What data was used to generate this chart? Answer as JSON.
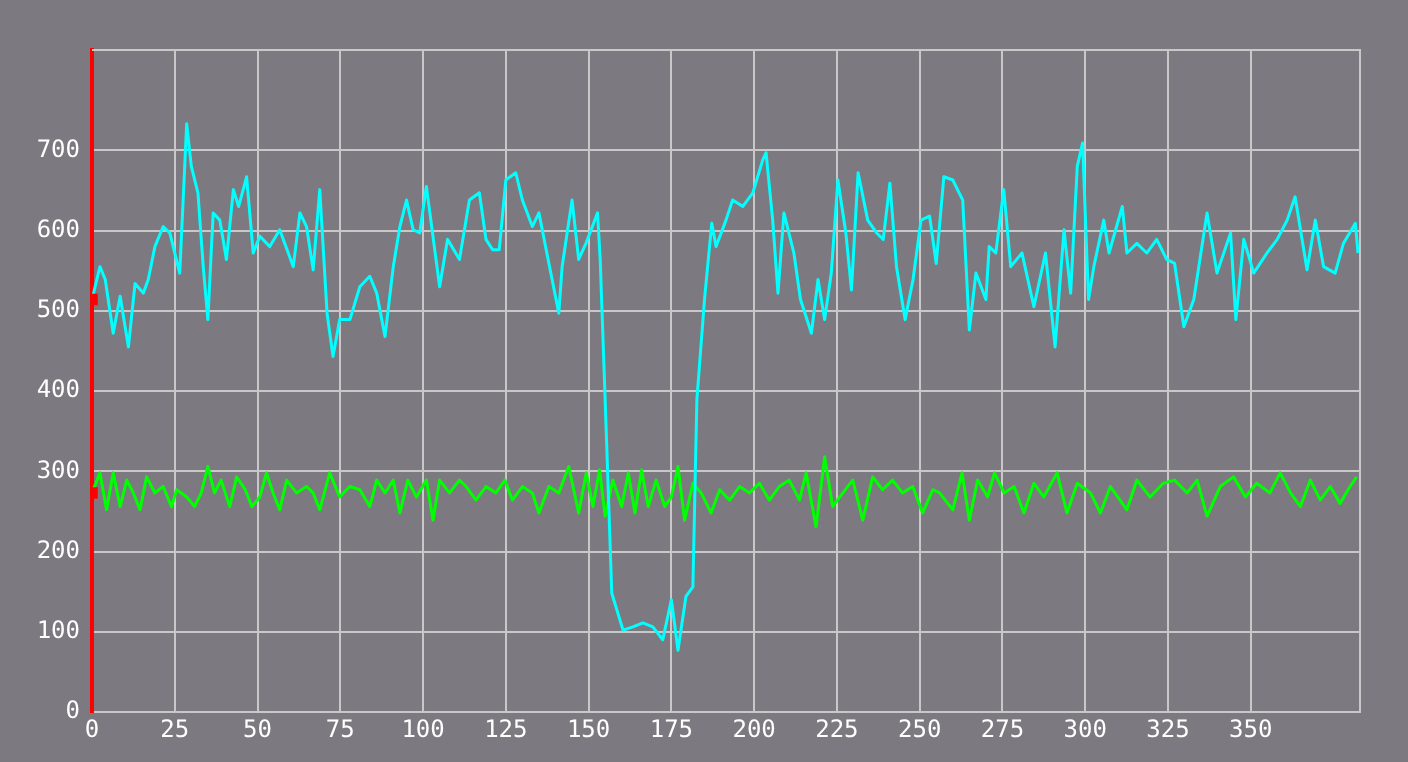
{
  "chart_data": {
    "type": "line",
    "series": [
      {
        "color": "#00ffff",
        "x": [
          0,
          2.4,
          4,
          6.4,
          8.5,
          11,
          13,
          15.5,
          17,
          19,
          21.5,
          23.5,
          26.5,
          28.6,
          30,
          32,
          33.6,
          35,
          36.6,
          38.6,
          40.6,
          42.7,
          44.3,
          46.7,
          48.7,
          50.7,
          53.7,
          56.7,
          60.8,
          62.8,
          64.8,
          66.8,
          68.8,
          71,
          72.8,
          74.8,
          77.9,
          80.9,
          83.9,
          86,
          88.5,
          91,
          93,
          95,
          97,
          99,
          101,
          105,
          107.4,
          111,
          114,
          117,
          119,
          121,
          123,
          125,
          128,
          130,
          133,
          135,
          137,
          141,
          142,
          145,
          147,
          149.3,
          152.7,
          153.5,
          155,
          157,
          160.4,
          163.4,
          166.4,
          169.4,
          172.4,
          175,
          177,
          179.4,
          181.5,
          182.7,
          185,
          187.2,
          188.5,
          191.5,
          193.5,
          196.6,
          199.6,
          202.6,
          203.6,
          205.6,
          207.2,
          209,
          212,
          214,
          217.3,
          219.3,
          221.3,
          223.3,
          225.3,
          227.7,
          229.4,
          231.4,
          234.3,
          237,
          239,
          241,
          243,
          245.6,
          248,
          250.4,
          253,
          255,
          257.3,
          260,
          263,
          265,
          267,
          270,
          271,
          273,
          275.4,
          277.5,
          280.9,
          284.5,
          288,
          290.9,
          293.6,
          295.6,
          297.6,
          299.2,
          301,
          302.6,
          305.6,
          307.2,
          311.2,
          312.6,
          315.6,
          318.6,
          321.6,
          324.6,
          327,
          329.8,
          332.8,
          336.8,
          339.8,
          343.9,
          345.5,
          347.9,
          350.9,
          354.9,
          358,
          361,
          363.4,
          367,
          369.5,
          372,
          375.5,
          378,
          381.6,
          382.4
        ],
        "values": [
          514,
          555,
          539,
          472,
          518,
          455,
          534,
          522,
          539,
          580,
          605,
          597,
          547,
          733,
          680,
          647,
          555,
          489,
          622,
          613,
          564,
          651,
          630,
          667,
          572,
          593,
          580,
          601,
          555,
          622,
          605,
          551,
          651,
          497,
          443,
          489,
          489,
          530,
          543,
          522,
          468,
          555,
          605,
          638,
          601,
          597,
          655,
          530,
          589,
          564,
          638,
          647,
          589,
          576,
          576,
          663,
          672,
          638,
          605,
          622,
          580,
          497,
          555,
          638,
          564,
          585,
          622,
          564,
          389,
          148,
          102,
          106,
          111,
          106,
          90,
          140,
          77,
          144,
          156,
          389,
          514,
          609,
          580,
          613,
          638,
          630,
          647,
          688,
          697,
          613,
          522,
          622,
          572,
          514,
          472,
          539,
          489,
          547,
          663,
          597,
          526,
          672,
          613,
          597,
          589,
          659,
          555,
          489,
          539,
          613,
          618,
          559,
          667,
          663,
          638,
          476,
          547,
          514,
          580,
          572,
          651,
          555,
          572,
          505,
          572,
          455,
          601,
          522,
          680,
          709,
          514,
          555,
          613,
          572,
          630,
          572,
          584,
          572,
          589,
          564,
          559,
          480,
          514,
          622,
          547,
          597,
          489,
          589,
          547,
          572,
          589,
          613,
          642,
          551,
          613,
          555,
          547,
          584,
          609,
          572
        ]
      },
      {
        "color": "#00ff00",
        "x": [
          0,
          2.4,
          4.4,
          6.4,
          8.5,
          10.5,
          12.5,
          14.5,
          16.5,
          19,
          21.5,
          24,
          25.6,
          28.6,
          31,
          33,
          35,
          37,
          39,
          41.6,
          43.7,
          46.3,
          48.3,
          50.7,
          52.7,
          54.7,
          56.7,
          58.8,
          61.8,
          64.8,
          66.8,
          68.8,
          71.8,
          74.8,
          77.9,
          80.9,
          83.9,
          86,
          88.5,
          91,
          93,
          95.4,
          98,
          101,
          103,
          105,
          108,
          111,
          113,
          116,
          119,
          122,
          124.7,
          127,
          130,
          133,
          135,
          138,
          141,
          144,
          147,
          149.3,
          151.3,
          153.3,
          155,
          157.3,
          160,
          162,
          164,
          166,
          168,
          170.4,
          173,
          175,
          177,
          179,
          181.5,
          184,
          187,
          189.6,
          192.6,
          195.6,
          198.6,
          201.6,
          204.6,
          207.6,
          210.6,
          213.7,
          215.7,
          218.7,
          221.3,
          223.7,
          226.8,
          229.8,
          232.8,
          235.8,
          238.8,
          241.8,
          244.8,
          247.9,
          250.9,
          254,
          256,
          260,
          262.8,
          265,
          267.5,
          270.5,
          272.6,
          275.5,
          278.5,
          281.5,
          284.5,
          287.5,
          291.5,
          294.5,
          297.6,
          301.6,
          304.6,
          307.6,
          312.6,
          315.6,
          319.6,
          323.6,
          327,
          330.8,
          333.8,
          336.8,
          340.8,
          344.8,
          348.4,
          351.8,
          355.8,
          358.9,
          362,
          365,
          368,
          371,
          374,
          377,
          380,
          382
        ],
        "values": [
          273,
          298,
          252,
          298,
          256,
          289,
          273,
          252,
          293,
          273,
          281,
          256,
          277,
          268,
          256,
          273,
          306,
          273,
          289,
          256,
          293,
          277,
          256,
          268,
          298,
          273,
          252,
          289,
          273,
          281,
          273,
          252,
          298,
          268,
          281,
          277,
          256,
          289,
          273,
          289,
          248,
          289,
          268,
          289,
          239,
          289,
          273,
          289,
          281,
          264,
          281,
          273,
          289,
          264,
          281,
          273,
          248,
          281,
          273,
          306,
          248,
          298,
          256,
          302,
          244,
          289,
          256,
          298,
          248,
          302,
          256,
          289,
          256,
          268,
          306,
          239,
          285,
          273,
          248,
          277,
          264,
          281,
          273,
          285,
          264,
          281,
          289,
          264,
          298,
          231,
          318,
          256,
          273,
          289,
          239,
          293,
          277,
          289,
          273,
          281,
          248,
          277,
          273,
          252,
          298,
          239,
          289,
          268,
          298,
          273,
          281,
          248,
          285,
          268,
          298,
          248,
          285,
          273,
          248,
          281,
          252,
          289,
          268,
          285,
          289,
          273,
          289,
          244,
          281,
          293,
          268,
          285,
          273,
          298,
          273,
          256,
          289,
          264,
          281,
          260,
          281,
          293
        ]
      }
    ],
    "xlim": [
      0,
      383
    ],
    "xticks": [
      0,
      25,
      50,
      75,
      100,
      125,
      150,
      175,
      200,
      225,
      250,
      275,
      300,
      325,
      350
    ],
    "ylim": [
      0,
      825
    ],
    "yticks": [
      0,
      100,
      200,
      300,
      400,
      500,
      600,
      700
    ],
    "grid": true
  }
}
